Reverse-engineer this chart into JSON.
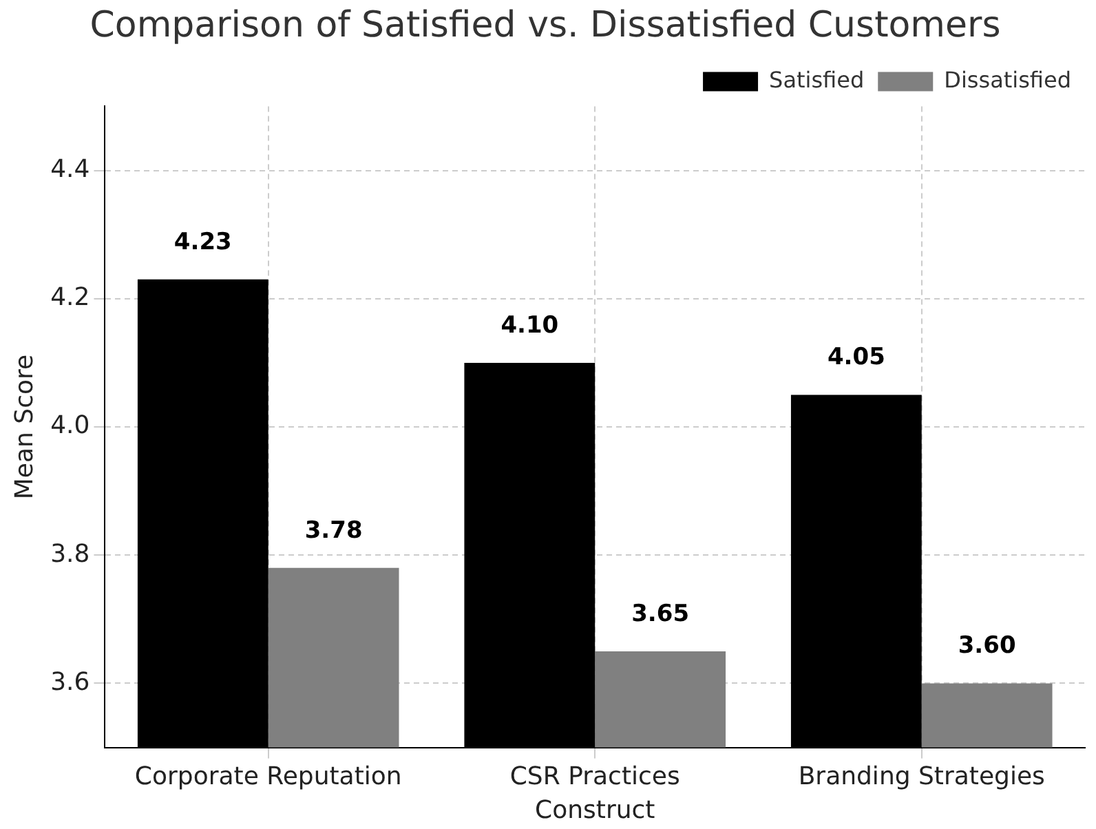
{
  "chart_data": {
    "type": "bar",
    "title": "Comparison of Satisfied vs. Dissatisfied Customers",
    "xlabel": "Construct",
    "ylabel": "Mean Score",
    "categories": [
      "Corporate Reputation",
      "CSR Practices",
      "Branding Strategies"
    ],
    "series": [
      {
        "name": "Satisfied",
        "color": "#000000",
        "values": [
          4.23,
          4.1,
          4.05
        ],
        "value_labels": [
          "4.23",
          "4.10",
          "4.05"
        ]
      },
      {
        "name": "Dissatisfied",
        "color": "#808080",
        "values": [
          3.78,
          3.65,
          3.6
        ],
        "value_labels": [
          "3.78",
          "3.65",
          "3.60"
        ]
      }
    ],
    "ylim": [
      3.5,
      4.5
    ],
    "yticks": [
      {
        "value": 3.6,
        "label": "3.6"
      },
      {
        "value": 3.8,
        "label": "3.8"
      },
      {
        "value": 4,
        "label": "4.0"
      },
      {
        "value": 4.2,
        "label": "4.2"
      },
      {
        "value": 4.4,
        "label": "4.4"
      }
    ],
    "grid": true,
    "legend": "top right"
  }
}
